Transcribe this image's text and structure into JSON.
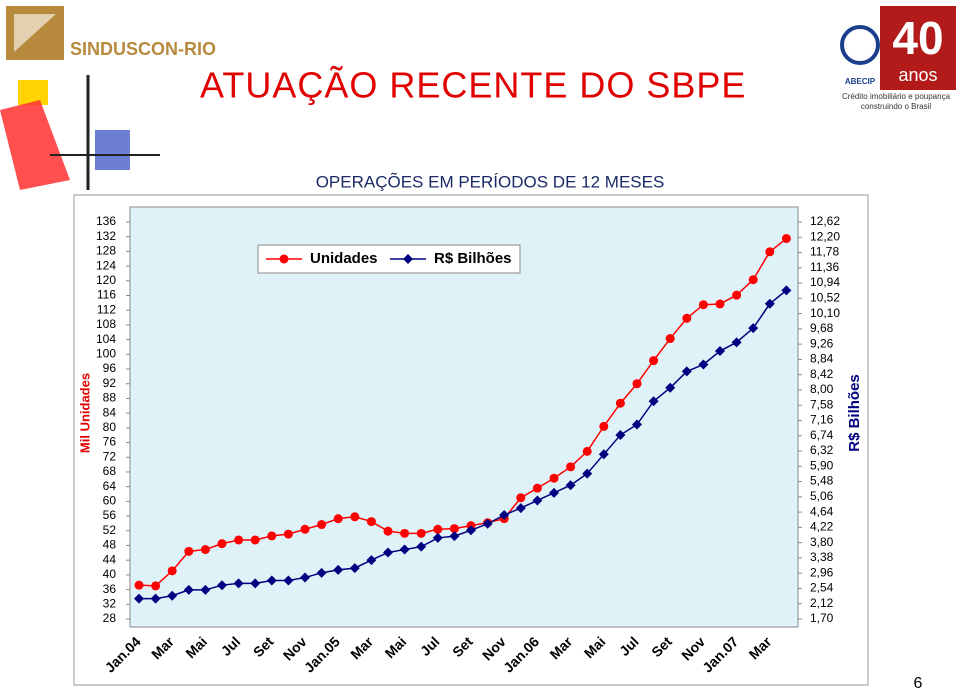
{
  "slide": {
    "logo_left": "SINDUSCON-RIO",
    "title": "ATUAÇÃO RECENTE DO SBPE",
    "logo_right_name": "ABECIP",
    "logo_right_years": "40",
    "logo_right_anos": "anos",
    "logo_right_tagline_1": "Crédito imobiliário e poupança",
    "logo_right_tagline_2": "construindo o Brasil",
    "page_number": "6"
  },
  "chart_data": {
    "type": "line",
    "title": "OPERAÇÕES EM PERÍODOS DE 12 MESES",
    "y_label": "Mil Unidades",
    "y2_label": "R$ Bilhões",
    "categories": [
      "Jan.04",
      null,
      "Mar",
      null,
      "Mai",
      null,
      "Jul",
      null,
      "Set",
      null,
      "Nov",
      null,
      "Jan.05",
      null,
      "Mar",
      null,
      "Mai",
      null,
      "Jul",
      null,
      "Set",
      null,
      "Nov",
      null,
      "Jan.06",
      null,
      "Mar",
      null,
      "Mai",
      null,
      "Jul",
      null,
      "Set",
      null,
      "Nov",
      null,
      "Jan.07",
      null,
      "Mar",
      null
    ],
    "series": [
      {
        "name": "Unidades",
        "color": "#ff0000",
        "marker": "circle",
        "values": [
          37.2,
          37,
          41.1,
          46.4,
          46.9,
          48.5,
          49.5,
          49.5,
          50.6,
          51.1,
          52.4,
          53.7,
          55.3,
          55.8,
          54.5,
          51.9,
          51.3,
          51.3,
          52.4,
          52.6,
          53.4,
          54.2,
          55.3,
          61,
          63.6,
          66.3,
          69.4,
          73.6,
          80.4,
          86.7,
          92,
          98.3,
          104.3,
          109.8,
          113.5,
          113.7,
          116.1,
          120.3,
          127.9,
          131.5
        ]
      },
      {
        "name": "R$ Bilhões",
        "color": "#000080",
        "marker": "diamond",
        "axis": "y2",
        "values": [
          2.26,
          2.26,
          2.34,
          2.5,
          2.5,
          2.63,
          2.68,
          2.68,
          2.76,
          2.76,
          2.84,
          2.97,
          3.05,
          3.1,
          3.32,
          3.53,
          3.61,
          3.69,
          3.93,
          3.98,
          4.14,
          4.32,
          4.56,
          4.75,
          4.96,
          5.17,
          5.38,
          5.7,
          6.23,
          6.76,
          7.05,
          7.69,
          8.06,
          8.51,
          8.7,
          9.07,
          9.31,
          9.7,
          10.37,
          10.74
        ]
      }
    ],
    "ylim": [
      28,
      136
    ],
    "yticks": [
      28,
      32,
      36,
      40,
      44,
      48,
      52,
      56,
      60,
      64,
      68,
      72,
      76,
      80,
      84,
      88,
      92,
      96,
      100,
      104,
      108,
      112,
      116,
      120,
      124,
      128,
      132,
      136
    ],
    "y2lim": [
      1.7,
      12.62
    ],
    "y2ticks": [
      {
        "value": 1.7,
        "label": "1,70"
      },
      {
        "value": 2.12,
        "label": "2,12"
      },
      {
        "value": 2.54,
        "label": "2,54"
      },
      {
        "value": 2.96,
        "label": "2,96"
      },
      {
        "value": 3.38,
        "label": "3,38"
      },
      {
        "value": 3.8,
        "label": "3,80"
      },
      {
        "value": 4.22,
        "label": "4,22"
      },
      {
        "value": 4.64,
        "label": "4,64"
      },
      {
        "value": 5.06,
        "label": "5,06"
      },
      {
        "value": 5.48,
        "label": "5,48"
      },
      {
        "value": 5.9,
        "label": "5,90"
      },
      {
        "value": 6.32,
        "label": "6,32"
      },
      {
        "value": 6.74,
        "label": "6,74"
      },
      {
        "value": 7.16,
        "label": "7,16"
      },
      {
        "value": 7.58,
        "label": "7,58"
      },
      {
        "value": 8.0,
        "label": "8,00"
      },
      {
        "value": 8.42,
        "label": "8,42"
      },
      {
        "value": 8.84,
        "label": "8,84"
      },
      {
        "value": 9.26,
        "label": "9,26"
      },
      {
        "value": 9.68,
        "label": "9,68"
      },
      {
        "value": 10.1,
        "label": "10,10"
      },
      {
        "value": 10.52,
        "label": "10,52"
      },
      {
        "value": 10.94,
        "label": "10,94"
      },
      {
        "value": 11.36,
        "label": "11,36"
      },
      {
        "value": 11.78,
        "label": "11,78"
      },
      {
        "value": 12.2,
        "label": "12,20"
      },
      {
        "value": 12.62,
        "label": "12,62"
      }
    ],
    "grid": false,
    "legend": "upper left"
  }
}
